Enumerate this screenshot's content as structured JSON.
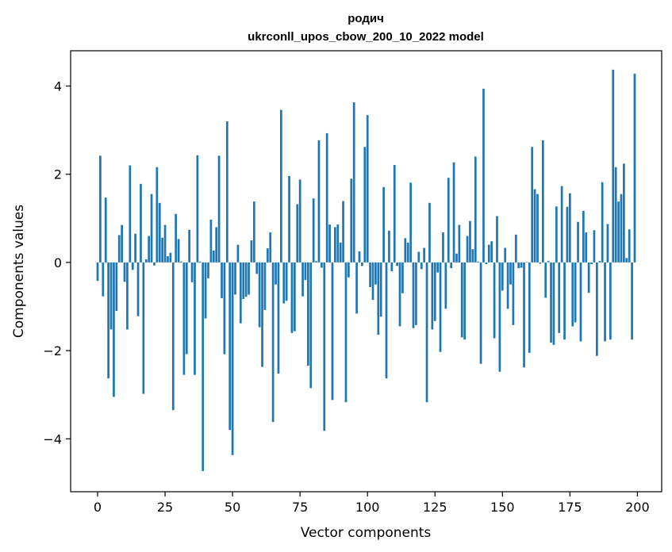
{
  "chart_data": {
    "type": "bar",
    "title_line1": "родич",
    "title_line2": "ukrconll_upos_cbow_200_10_2022 model",
    "xlabel": "Vector components",
    "ylabel": "Components values",
    "xlim": [
      -10,
      209
    ],
    "ylim": [
      -5.2,
      4.8
    ],
    "xticks": [
      0,
      25,
      50,
      75,
      100,
      125,
      150,
      175,
      200
    ],
    "yticks": [
      -4,
      -2,
      0,
      2,
      4
    ],
    "ytick_labels": [
      "−4",
      "−2",
      "0",
      "2",
      "4"
    ],
    "bar_color": "#1f77b4",
    "grid": false,
    "values": [
      -0.42,
      2.42,
      -0.77,
      1.47,
      -2.63,
      -1.52,
      -3.05,
      -1.1,
      0.62,
      0.85,
      -0.44,
      -1.52,
      2.2,
      -0.17,
      0.65,
      -1.22,
      1.78,
      -2.98,
      0.07,
      0.6,
      1.55,
      -0.07,
      2.16,
      1.35,
      0.56,
      0.85,
      0.14,
      0.22,
      -3.35,
      1.1,
      0.53,
      0.02,
      -2.55,
      -2.08,
      0.74,
      -0.45,
      -2.55,
      2.43,
      0.02,
      -4.73,
      -1.27,
      -0.36,
      0.97,
      0.27,
      0.8,
      2.42,
      -0.81,
      -2.08,
      3.2,
      -3.8,
      -4.37,
      -0.73,
      0.4,
      -1.38,
      -0.83,
      -0.78,
      -0.73,
      0.5,
      1.38,
      -0.26,
      -1.47,
      -2.37,
      -1.08,
      0.32,
      0.68,
      -3.62,
      -0.5,
      -2.52,
      3.46,
      -0.93,
      -0.87,
      1.96,
      -1.6,
      -1.56,
      1.32,
      1.88,
      -0.77,
      -0.4,
      -2.34,
      -2.85,
      1.45,
      0.03,
      2.77,
      -0.12,
      -3.82,
      2.93,
      0.86,
      -3.12,
      0.8,
      0.86,
      0.45,
      1.39,
      -3.17,
      -0.34,
      1.9,
      3.63,
      -1.16,
      0.25,
      -0.08,
      2.62,
      3.34,
      -0.56,
      -0.85,
      -0.5,
      -1.64,
      -1.23,
      1.71,
      -2.63,
      0.72,
      -0.2,
      2.21,
      -0.08,
      -1.45,
      -0.7,
      0.55,
      0.45,
      1.81,
      -1.49,
      -1.42,
      0.24,
      -0.15,
      0.33,
      -3.17,
      1.35,
      -1.52,
      -1.33,
      -0.23,
      -2.03,
      0.68,
      -1.05,
      1.92,
      -0.13,
      2.27,
      0.2,
      0.85,
      -1.7,
      -1.75,
      0.6,
      0.94,
      0.3,
      2.4,
      0.02,
      -2.3,
      3.94,
      -0.04,
      0.4,
      0.48,
      -1.72,
      1.05,
      -2.48,
      -0.64,
      0.33,
      -1.05,
      -0.5,
      -1.42,
      0.63,
      -0.13,
      -0.12,
      -2.38,
      0.01,
      -2.05,
      2.62,
      1.66,
      1.55,
      -0.03,
      2.77,
      -0.8,
      0.03,
      -1.82,
      -1.87,
      1.27,
      -1.6,
      1.73,
      -1.75,
      1.26,
      1.57,
      -1.45,
      -1.36,
      0.92,
      -1.79,
      1.17,
      0.68,
      -0.69,
      -0.04,
      0.73,
      -2.12,
      0.03,
      1.82,
      -1.79,
      0.87,
      -1.75,
      4.37,
      2.16,
      1.38,
      1.55,
      2.24,
      0.1,
      0.75,
      -1.75,
      4.28
    ]
  }
}
